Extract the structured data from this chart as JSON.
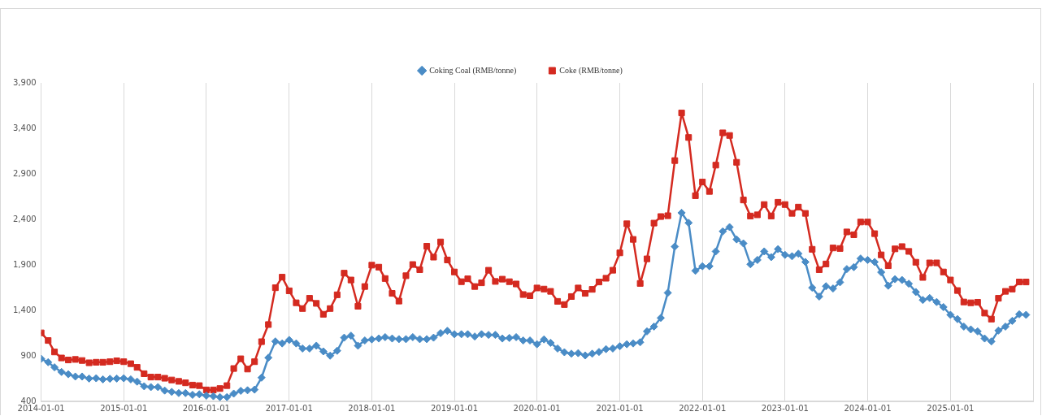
{
  "chart_data": {
    "type": "line",
    "x": [
      "2014-01",
      "2014-02",
      "2014-03",
      "2014-04",
      "2014-05",
      "2014-06",
      "2014-07",
      "2014-08",
      "2014-09",
      "2014-10",
      "2014-11",
      "2014-12",
      "2015-01",
      "2015-02",
      "2015-03",
      "2015-04",
      "2015-05",
      "2015-06",
      "2015-07",
      "2015-08",
      "2015-09",
      "2015-10",
      "2015-11",
      "2015-12",
      "2016-01",
      "2016-02",
      "2016-03",
      "2016-04",
      "2016-05",
      "2016-06",
      "2016-07",
      "2016-08",
      "2016-09",
      "2016-10",
      "2016-11",
      "2016-12",
      "2017-01",
      "2017-02",
      "2017-03",
      "2017-04",
      "2017-05",
      "2017-06",
      "2017-07",
      "2017-08",
      "2017-09",
      "2017-10",
      "2017-11",
      "2017-12",
      "2018-01",
      "2018-02",
      "2018-03",
      "2018-04",
      "2018-05",
      "2018-06",
      "2018-07",
      "2018-08",
      "2018-09",
      "2018-10",
      "2018-11",
      "2018-12",
      "2019-01",
      "2019-02",
      "2019-03",
      "2019-04",
      "2019-05",
      "2019-06",
      "2019-07",
      "2019-08",
      "2019-09",
      "2019-10",
      "2019-11",
      "2019-12",
      "2020-01",
      "2020-02",
      "2020-03",
      "2020-04",
      "2020-05",
      "2020-06",
      "2020-07",
      "2020-08",
      "2020-09",
      "2020-10",
      "2020-11",
      "2020-12",
      "2021-01",
      "2021-02",
      "2021-03",
      "2021-04",
      "2021-05",
      "2021-06",
      "2021-07",
      "2021-08",
      "2021-09",
      "2021-10",
      "2021-11",
      "2021-12",
      "2022-01",
      "2022-02",
      "2022-03",
      "2022-04",
      "2022-05",
      "2022-06",
      "2022-07",
      "2022-08",
      "2022-09",
      "2022-10",
      "2022-11",
      "2022-12",
      "2023-01",
      "2023-02",
      "2023-03",
      "2023-04",
      "2023-05",
      "2023-06",
      "2023-07",
      "2023-08",
      "2023-09",
      "2023-10",
      "2023-11",
      "2023-12",
      "2024-01",
      "2024-02",
      "2024-03",
      "2024-04",
      "2024-05",
      "2024-06",
      "2024-07",
      "2024-08",
      "2024-09",
      "2024-10",
      "2024-11",
      "2024-12",
      "2025-01",
      "2025-02",
      "2025-03",
      "2025-04",
      "2025-05",
      "2025-06",
      "2025-07",
      "2025-08",
      "2025-09",
      "2025-10",
      "2025-11",
      "2025-12"
    ],
    "series": [
      {
        "name": "Coking Coal (RMB/tonne)",
        "color": "#4a8cc6",
        "marker": "diamond",
        "values": [
          868,
          830,
          774,
          723,
          698,
          673,
          673,
          651,
          654,
          642,
          648,
          651,
          654,
          642,
          617,
          566,
          557,
          557,
          519,
          504,
          491,
          491,
          472,
          478,
          463,
          457,
          447,
          447,
          485,
          516,
          522,
          529,
          661,
          880,
          1059,
          1037,
          1075,
          1037,
          981,
          981,
          1012,
          949,
          902,
          956,
          1100,
          1122,
          1012,
          1069,
          1081,
          1091,
          1106,
          1091,
          1084,
          1084,
          1106,
          1084,
          1084,
          1100,
          1150,
          1175,
          1138,
          1138,
          1138,
          1113,
          1138,
          1131,
          1131,
          1091,
          1097,
          1106,
          1069,
          1069,
          1028,
          1081,
          1043,
          981,
          940,
          924,
          930,
          905,
          924,
          943,
          974,
          981,
          1006,
          1028,
          1037,
          1050,
          1169,
          1222,
          1317,
          1593,
          2101,
          2472,
          2362,
          1835,
          1885,
          1885,
          2048,
          2268,
          2315,
          2180,
          2136,
          1907,
          1954,
          2048,
          1985,
          2073,
          2010,
          1995,
          2023,
          1932,
          1649,
          1552,
          1665,
          1640,
          1709,
          1854,
          1875,
          1970,
          1954,
          1932,
          1819,
          1671,
          1743,
          1734,
          1693,
          1602,
          1514,
          1536,
          1492,
          1436,
          1351,
          1304,
          1222,
          1191,
          1169,
          1091,
          1059,
          1178,
          1222,
          1285,
          1357,
          1351
        ]
      },
      {
        "name": "Coke (RMB/tonne)",
        "color": "#d42a20",
        "marker": "square",
        "values": [
          1153,
          1069,
          943,
          877,
          855,
          861,
          849,
          824,
          830,
          830,
          836,
          846,
          836,
          814,
          774,
          704,
          667,
          667,
          654,
          635,
          620,
          604,
          579,
          573,
          526,
          526,
          541,
          573,
          761,
          868,
          755,
          836,
          1056,
          1244,
          1649,
          1765,
          1615,
          1483,
          1420,
          1533,
          1477,
          1357,
          1420,
          1571,
          1809,
          1734,
          1445,
          1662,
          1897,
          1875,
          1750,
          1587,
          1502,
          1781,
          1904,
          1847,
          2105,
          1985,
          2152,
          1954,
          1822,
          1715,
          1747,
          1662,
          1703,
          1841,
          1718,
          1743,
          1715,
          1690,
          1574,
          1561,
          1646,
          1634,
          1609,
          1499,
          1464,
          1552,
          1646,
          1587,
          1631,
          1712,
          1753,
          1841,
          2032,
          2352,
          2180,
          1696,
          1966,
          2359,
          2431,
          2440,
          3046,
          3570,
          3300,
          2660,
          2811,
          2707,
          2996,
          3351,
          3322,
          3027,
          2613,
          2437,
          2450,
          2563,
          2437,
          2588,
          2563,
          2466,
          2535,
          2466,
          2071,
          1847,
          1910,
          2086,
          2080,
          2262,
          2231,
          2371,
          2371,
          2243,
          2010,
          1891,
          2076,
          2101,
          2048,
          1929,
          1762,
          1922,
          1922,
          1822,
          1734,
          1618,
          1492,
          1483,
          1489,
          1370,
          1304,
          1533,
          1609,
          1634,
          1712,
          1712
        ]
      }
    ],
    "xlim": [
      "2014-01-01",
      "2026-01-01"
    ],
    "xticks": [
      "2014-01-01",
      "2015-01-01",
      "2016-01-01",
      "2017-01-01",
      "2018-01-01",
      "2019-01-01",
      "2020-01-01",
      "2021-01-01",
      "2022-01-01",
      "2023-01-01",
      "2024-01-01",
      "2025-01-01",
      {
        "value": "2026-01-01",
        "label": null
      }
    ],
    "ylim": [
      400,
      3900
    ],
    "yticks": [
      {
        "value": 400,
        "label": "400"
      },
      {
        "value": 900,
        "label": "900"
      },
      {
        "value": 1400,
        "label": "1,400"
      },
      {
        "value": 1900,
        "label": "1,900"
      },
      {
        "value": 2400,
        "label": "2,400"
      },
      {
        "value": 2900,
        "label": "2,900"
      },
      {
        "value": 3400,
        "label": "3,400"
      },
      {
        "value": 3900,
        "label": "3,900"
      }
    ],
    "grid": "x",
    "legend": "top",
    "line_style": "solid"
  }
}
